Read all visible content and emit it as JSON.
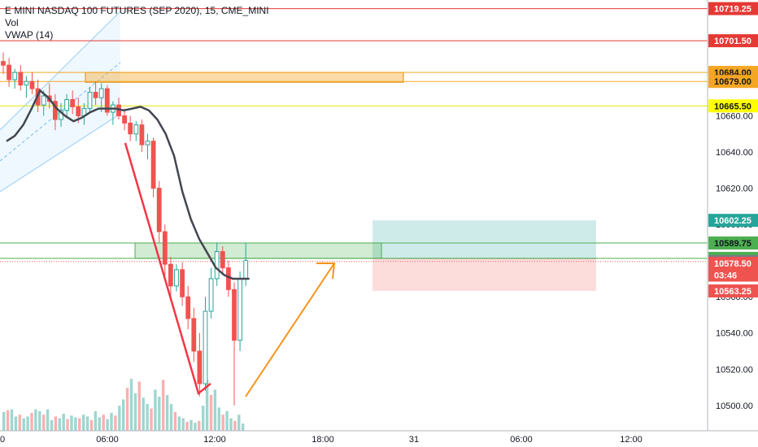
{
  "chart_data": {
    "type": "candlestick",
    "title": "E MINI NASDAQ 100 FUTURES (SEP 2020), 15, CME_MINI",
    "indicators": [
      "Vol",
      "VWAP (14)"
    ],
    "ylim": [
      10486,
      10724
    ],
    "y_ticks": [
      10500,
      10520,
      10540,
      10560,
      10580,
      10600,
      10620,
      10640,
      10660
    ],
    "y_tick_labels": [
      "10500.00",
      "10520.00",
      "10540.00",
      "10560.00",
      "10580.00",
      "10600.00",
      "10620.00",
      "10640.00",
      "10660.00"
    ],
    "x_ticks": [
      "06:00",
      "12:00",
      "18:00",
      "31",
      "06:00",
      "12:00"
    ],
    "price_lines": [
      {
        "value": 10719.25,
        "label": "10719.25",
        "color": "#e53935",
        "text_color": "#ffffff"
      },
      {
        "value": 10701.5,
        "label": "10701.50",
        "color": "#e53935",
        "text_color": "#ffffff"
      },
      {
        "value": 10684.0,
        "label": "10684.00",
        "color": "#f5a623",
        "text_color": "#131722"
      },
      {
        "value": 10679.0,
        "label": "10679.00",
        "color": "#f5a623",
        "text_color": "#131722"
      },
      {
        "value": 10665.5,
        "label": "10665.50",
        "color": "#ffff00",
        "text_color": "#131722"
      },
      {
        "value": 10589.75,
        "label": "10589.75",
        "color": "#4caf50",
        "text_color": "#131722"
      },
      {
        "value": 10581.25,
        "label": "10581.25",
        "color": "#4caf50",
        "text_color": "#131722"
      }
    ],
    "target_label": {
      "value": 10602.25,
      "label": "10602.25",
      "color": "#26a69a"
    },
    "last_price": {
      "value": 10579.5,
      "label": "10579.50",
      "color": "#787b86"
    },
    "stop_label": {
      "value": 10578.5,
      "label": "10578.50",
      "color": "#ef5350"
    },
    "countdown": {
      "value": 10572,
      "label": "03:46",
      "color": "#ef5350"
    },
    "stop_bottom_label": {
      "value": 10563.25,
      "label": "10563.25",
      "color": "#ef5350"
    },
    "candles": [
      [
        10690,
        10695,
        10683,
        10688
      ],
      [
        10688,
        10692,
        10676,
        10680
      ],
      [
        10680,
        10686,
        10675,
        10684
      ],
      [
        10684,
        10688,
        10674,
        10677
      ],
      [
        10677,
        10682,
        10670,
        10679
      ],
      [
        10679,
        10684,
        10672,
        10675
      ],
      [
        10675,
        10680,
        10662,
        10666
      ],
      [
        10666,
        10674,
        10660,
        10671
      ],
      [
        10671,
        10678,
        10664,
        10668
      ],
      [
        10668,
        10672,
        10652,
        10658
      ],
      [
        10658,
        10667,
        10654,
        10663
      ],
      [
        10663,
        10672,
        10660,
        10669
      ],
      [
        10669,
        10674,
        10661,
        10665
      ],
      [
        10665,
        10670,
        10656,
        10660
      ],
      [
        10660,
        10667,
        10655,
        10664
      ],
      [
        10664,
        10676,
        10662,
        10673
      ],
      [
        10673,
        10679,
        10666,
        10670
      ],
      [
        10670,
        10678,
        10662,
        10675
      ],
      [
        10675,
        10677,
        10660,
        10662
      ],
      [
        10662,
        10668,
        10655,
        10666
      ],
      [
        10666,
        10670,
        10658,
        10660
      ],
      [
        10660,
        10664,
        10652,
        10656
      ],
      [
        10656,
        10660,
        10646,
        10650
      ],
      [
        10650,
        10657,
        10646,
        10655
      ],
      [
        10655,
        10658,
        10640,
        10644
      ],
      [
        10644,
        10650,
        10636,
        10646
      ],
      [
        10646,
        10648,
        10615,
        10620
      ],
      [
        10620,
        10624,
        10590,
        10596
      ],
      [
        10596,
        10600,
        10572,
        10578
      ],
      [
        10578,
        10582,
        10560,
        10566
      ],
      [
        10566,
        10578,
        10563,
        10575
      ],
      [
        10575,
        10579,
        10555,
        10560
      ],
      [
        10560,
        10566,
        10542,
        10548
      ],
      [
        10548,
        10554,
        10524,
        10530
      ],
      [
        10530,
        10540,
        10505,
        10512
      ],
      [
        10512,
        10560,
        10508,
        10552
      ],
      [
        10552,
        10576,
        10548,
        10570
      ],
      [
        10570,
        10590,
        10566,
        10585
      ],
      [
        10585,
        10588,
        10572,
        10576
      ],
      [
        10576,
        10580,
        10560,
        10564
      ],
      [
        10564,
        10568,
        10500,
        10536
      ],
      [
        10536,
        10574,
        10530,
        10570
      ],
      [
        10570,
        10590,
        10566,
        10580
      ]
    ],
    "vwap": [
      10646,
      10649,
      10655,
      10664,
      10674,
      10670,
      10664,
      10660,
      10657,
      10659,
      10662,
      10664,
      10664,
      10664,
      10663,
      10664,
      10665,
      10663,
      10658,
      10650,
      10638,
      10618,
      10603,
      10592,
      10584,
      10576,
      10572,
      10570,
      10570,
      10570
    ],
    "volume": [
      21,
      23,
      24,
      16,
      18,
      14,
      16,
      20,
      24,
      22,
      18,
      24,
      12,
      16,
      14,
      19,
      13,
      17,
      15,
      14,
      18,
      16,
      12,
      22,
      15,
      18,
      13,
      20,
      17,
      28,
      35,
      48,
      58,
      42,
      55,
      37,
      30,
      25,
      46,
      38,
      57,
      40,
      30,
      21,
      16,
      14,
      10,
      12,
      9,
      11,
      28,
      57,
      40,
      46,
      26,
      18,
      22,
      14,
      11,
      18,
      8
    ]
  }
}
